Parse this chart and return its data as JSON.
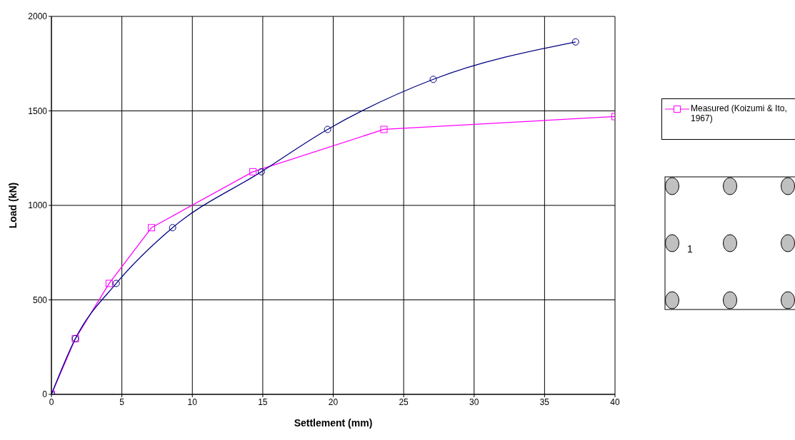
{
  "chart_data": {
    "type": "line",
    "xlabel": "Settlement (mm)",
    "ylabel": "Load (kN)",
    "xlim": [
      0,
      40
    ],
    "xticks": [
      0,
      5,
      10,
      15,
      20,
      25,
      30,
      35,
      40
    ],
    "ylim": [
      0,
      2000
    ],
    "yticks": [
      0,
      500,
      1000,
      1500,
      2000
    ],
    "grid": true,
    "legend": "right",
    "series": [
      {
        "name": "Measured (Koizumi & Ito, 1967)",
        "color": "#ff00ff",
        "marker": "square",
        "x": [
          0,
          1.7,
          4.1,
          7.1,
          14.3,
          23.6,
          40
        ],
        "values": [
          0,
          295,
          587,
          882,
          1178,
          1402,
          1470
        ]
      },
      {
        "color": "#000080",
        "marker": "circle",
        "x": [
          0,
          1.7,
          4.6,
          8.6,
          14.9,
          19.6,
          27.1,
          37.2
        ],
        "values": [
          0,
          295,
          587,
          882,
          1178,
          1402,
          1667,
          1865
        ]
      }
    ],
    "annotations": [
      "1"
    ]
  }
}
